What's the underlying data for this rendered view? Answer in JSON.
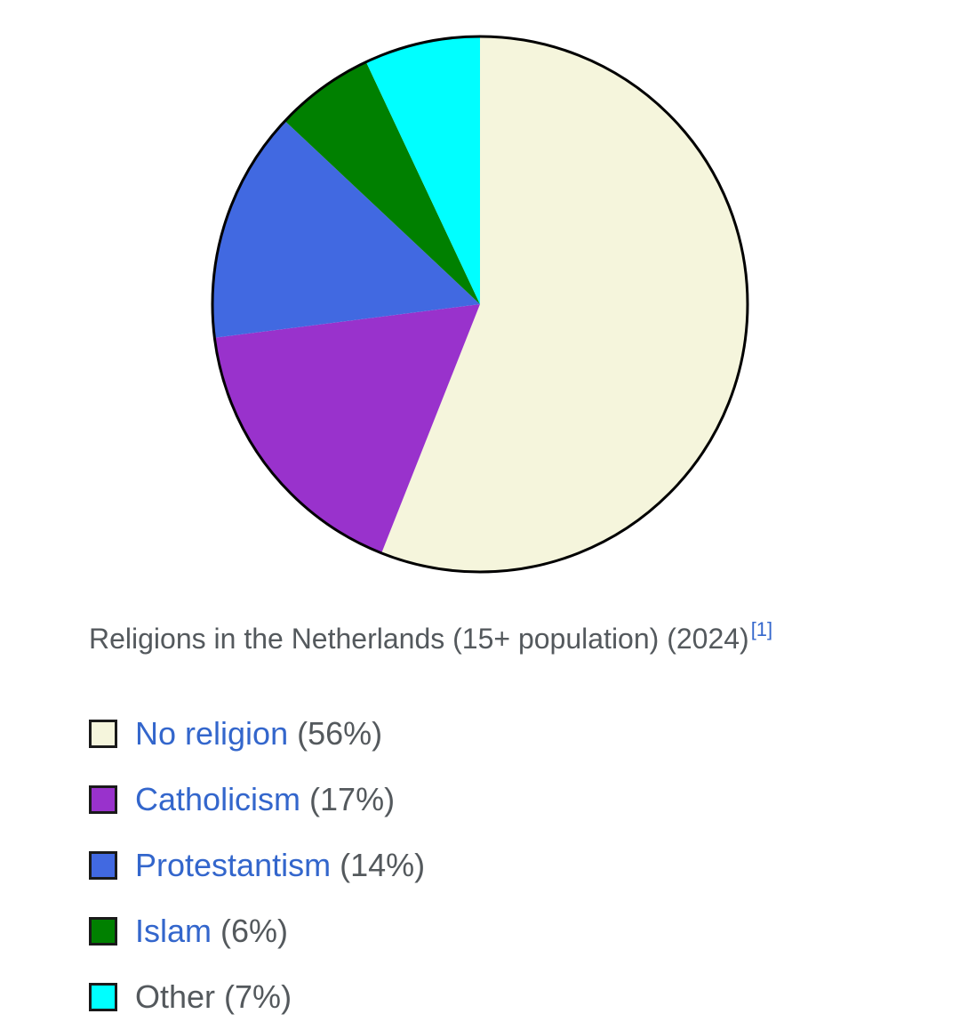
{
  "chart_data": {
    "type": "pie",
    "title": "Religions in the Netherlands (15+ population) (2024)",
    "reference": "[1]",
    "slices": [
      {
        "label": "No religion",
        "value": 56,
        "value_label": "(56%)",
        "color": "#f5f5dc",
        "link": true
      },
      {
        "label": "Catholicism",
        "value": 17,
        "value_label": "(17%)",
        "color": "#9932cc",
        "link": true
      },
      {
        "label": "Protestantism",
        "value": 14,
        "value_label": "(14%)",
        "color": "#4169e1",
        "link": true
      },
      {
        "label": "Islam",
        "value": 6,
        "value_label": "(6%)",
        "color": "#008000",
        "link": true
      },
      {
        "label": "Other",
        "value": 7,
        "value_label": "(7%)",
        "color": "#00ffff",
        "link": false
      }
    ],
    "start": "top",
    "direction": "clockwise",
    "legend_position": "bottom"
  }
}
